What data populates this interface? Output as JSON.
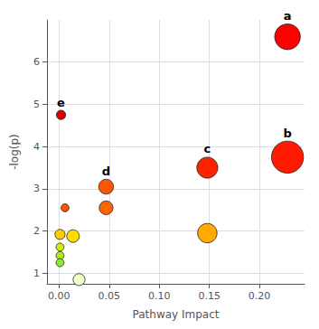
{
  "chart_data": {
    "type": "scatter",
    "xlabel": "Pathway Impact",
    "ylabel": "-log(p)",
    "x": [
      0.228,
      0.228,
      0.148,
      0.047,
      0.002,
      0.047,
      0.148,
      0.006,
      0.001,
      0.014,
      0.001,
      0.001,
      0.001,
      0.02
    ],
    "values": [
      6.6,
      3.75,
      3.5,
      3.05,
      4.75,
      2.55,
      1.95,
      2.55,
      1.92,
      1.88,
      1.62,
      1.42,
      1.25,
      0.85
    ],
    "sizes": [
      420,
      650,
      280,
      140,
      55,
      120,
      240,
      40,
      65,
      100,
      40,
      40,
      40,
      90
    ],
    "colors": [
      "#ff0000",
      "#ff1a00",
      "#ff2200",
      "#ff5500",
      "#dd0000",
      "#ff6600",
      "#ffaa00",
      "#ff5500",
      "#ffcc00",
      "#ffdd00",
      "#ccee00",
      "#aaee11",
      "#88ee22",
      "#eeffc8"
    ],
    "labels": [
      "a",
      "b",
      "c",
      "d",
      "e",
      null,
      null,
      null,
      null,
      null,
      null,
      null,
      null,
      null
    ],
    "xlim": [
      -0.012,
      0.245
    ],
    "ylim": [
      0.75,
      7.0
    ],
    "xticks": [
      {
        "value": 0.0,
        "label": "0.00"
      },
      0.05,
      {
        "value": 0.1,
        "label": "0.10"
      },
      0.15,
      {
        "value": 0.2,
        "label": "0.20"
      }
    ],
    "yticks": [
      1,
      2,
      3,
      4,
      5,
      6
    ],
    "grid": true
  }
}
